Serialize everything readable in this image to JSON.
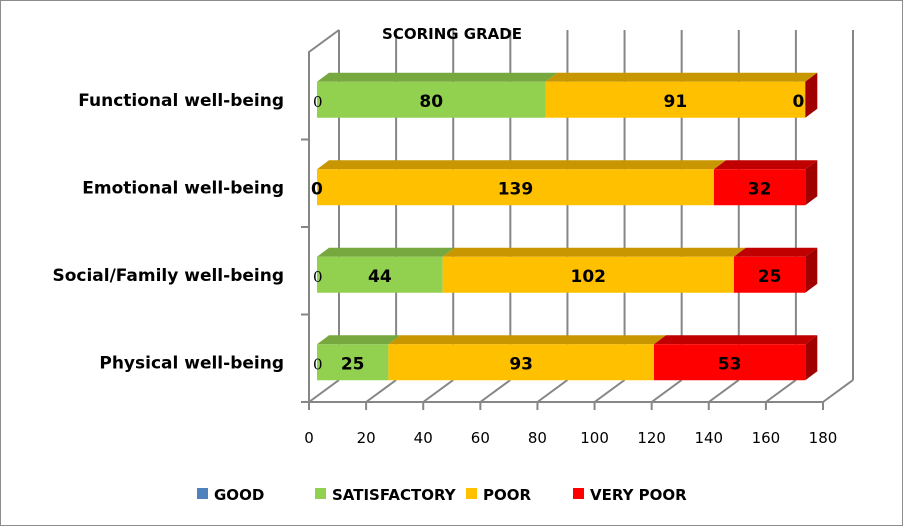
{
  "chart_data": {
    "type": "bar",
    "orientation": "horizontal",
    "stacked": true,
    "style": "3d",
    "title": "SCORING GRADE",
    "xlabel": "",
    "ylabel": "",
    "xlim": [
      0,
      180
    ],
    "x_ticks": [
      "0",
      "20",
      "40",
      "60",
      "80",
      "100",
      "120",
      "140",
      "160",
      "180"
    ],
    "grid": true,
    "legend_position": "bottom",
    "categories": [
      "Functional well-being",
      "Emotional well-being",
      "Social/Family well-being",
      "Physical well-being"
    ],
    "series": [
      {
        "name": "GOOD",
        "color": "#4f81bd",
        "values": [
          0,
          0,
          0,
          0
        ]
      },
      {
        "name": "SATISFACTORY",
        "color": "#92d050",
        "values": [
          80,
          0,
          44,
          25
        ]
      },
      {
        "name": "POOR",
        "color": "#ffc000",
        "values": [
          91,
          139,
          102,
          93
        ]
      },
      {
        "name": "VERY POOR",
        "color": "#ff0000",
        "values": [
          0,
          32,
          25,
          53
        ]
      }
    ],
    "data_labels": [
      [
        "0",
        "80",
        "91",
        "0"
      ],
      [
        "0",
        "",
        "139",
        "32"
      ],
      [
        "0",
        "44",
        "102",
        "25"
      ],
      [
        "0",
        "25",
        "93",
        "53"
      ]
    ]
  }
}
